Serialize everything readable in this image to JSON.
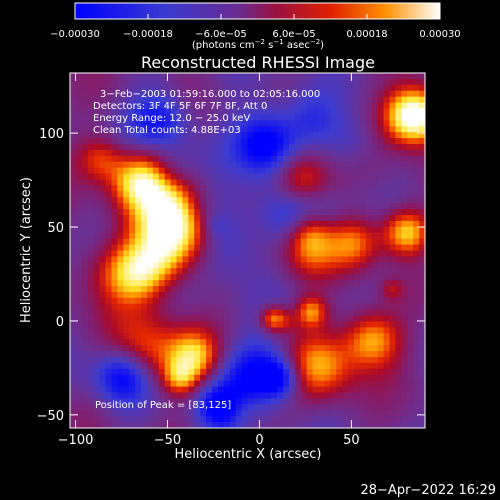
{
  "chart_data": {
    "type": "heatmap",
    "title": "Reconstructed RHESSI Image",
    "xlabel": "Heliocentric X (arcsec)",
    "ylabel": "Heliocentric Y (arcsec)",
    "xlim": [
      -103,
      90
    ],
    "ylim": [
      -57,
      132
    ],
    "xticks": [
      -100,
      -50,
      0,
      50
    ],
    "yticks": [
      -50,
      0,
      50,
      100
    ],
    "xtick_labels": [
      "−100",
      "−50",
      "0",
      "50"
    ],
    "ytick_labels": [
      "−50",
      "0",
      "50",
      "100"
    ],
    "colorbar": {
      "range": [
        -0.0003,
        0.0003
      ],
      "ticks": [
        -0.0003,
        -0.00018,
        -6e-05,
        6e-05,
        0.00018,
        0.0003
      ],
      "tick_labels": [
        "−0.00030",
        "−0.00018",
        "−6.0e−05",
        "6.0e−05",
        "0.00018",
        "0.00030"
      ],
      "colors": [
        "#0000ff",
        "#2a2ae0",
        "#5040b0",
        "#7a2a80",
        "#a00030",
        "#e02000",
        "#ff7000",
        "#ffd000",
        "#ffffff"
      ]
    },
    "annotations": [
      "3−Feb−2003 01:59:16.000 to 02:05:16.000",
      "Detectors: 3F 4F 5F 6F 7F 8F, Att 0",
      "Energy Range: 12.0 − 25.0 keV",
      "Clean    Total counts: 4.88E+03",
      "Position of Peak = [83,125]"
    ],
    "peak": [
      83,
      125
    ]
  },
  "colorbar_unit": {
    "pre": "(photons cm",
    "exp1": "−2",
    "mid1": " s",
    "exp2": "−1",
    "mid2": " asec",
    "exp3": "−2",
    "post": ")"
  },
  "timestamp": "28−Apr−2022 16:29"
}
